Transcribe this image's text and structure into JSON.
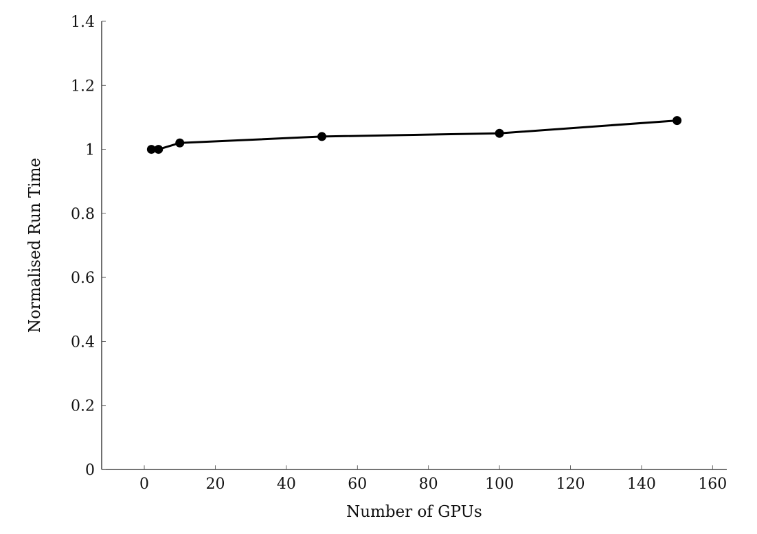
{
  "chart_data": {
    "type": "line",
    "title": "",
    "xlabel": "Number of GPUs",
    "ylabel": "Normalised Run Time",
    "xlim": [
      -12,
      164
    ],
    "ylim": [
      0,
      1.4
    ],
    "xticks": [
      0,
      20,
      40,
      60,
      80,
      100,
      120,
      140,
      160
    ],
    "yticks": [
      0,
      0.2,
      0.4,
      0.6,
      0.8,
      1,
      1.2,
      1.4
    ],
    "xtick_labels": [
      "0",
      "20",
      "40",
      "60",
      "80",
      "100",
      "120",
      "140",
      "160"
    ],
    "ytick_labels": [
      "0",
      "0.2",
      "0.4",
      "0.6",
      "0.8",
      "1",
      "1.2",
      "1.4"
    ],
    "grid": false,
    "series": [
      {
        "x": [
          2,
          4,
          10,
          50,
          100,
          150
        ],
        "y": [
          1.0,
          1.0,
          1.02,
          1.04,
          1.05,
          1.09
        ],
        "color": "#000000",
        "marker": "circle"
      }
    ]
  }
}
